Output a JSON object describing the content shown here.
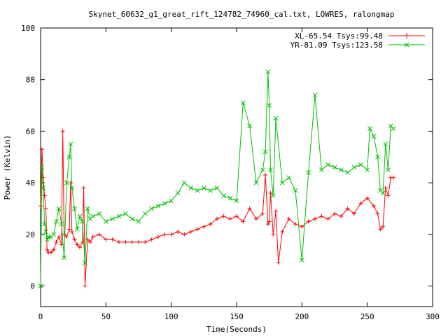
{
  "chart_data": {
    "type": "line",
    "title": "Skynet_60632_g1_great_rift_124782_74960_cal.txt, LOWRES, ralongmap",
    "xlabel": "Time(Seconds)",
    "ylabel": "Power (Kelvin)",
    "xlim": [
      0,
      300
    ],
    "ylim": [
      -8,
      100
    ],
    "xticks": [
      0,
      50,
      100,
      150,
      200,
      250,
      300
    ],
    "yticks": [
      0,
      20,
      40,
      60,
      80,
      100
    ],
    "grid": false,
    "legend_position": "top-right",
    "series": [
      {
        "name": "XL-65.54 Tsys:99.48",
        "color": "#ff0000",
        "marker": "plus",
        "x": [
          0,
          1,
          2,
          3,
          4,
          5,
          6,
          8,
          10,
          12,
          14,
          16,
          17,
          18,
          20,
          22,
          23,
          24,
          26,
          28,
          30,
          32,
          33,
          34,
          36,
          38,
          40,
          45,
          50,
          55,
          60,
          65,
          70,
          75,
          80,
          85,
          90,
          95,
          100,
          105,
          110,
          115,
          120,
          125,
          130,
          135,
          140,
          145,
          150,
          155,
          160,
          165,
          170,
          172,
          174,
          175,
          176,
          178,
          180,
          182,
          185,
          190,
          195,
          200,
          205,
          210,
          215,
          220,
          225,
          230,
          235,
          240,
          245,
          250,
          255,
          258,
          260,
          262,
          264,
          266,
          268,
          270
        ],
        "y": [
          31,
          53,
          42,
          35,
          30,
          14,
          13,
          13,
          14,
          17,
          19,
          16,
          60,
          20,
          19,
          22,
          40,
          21,
          18,
          16,
          15,
          17,
          38,
          0,
          18,
          17,
          19,
          20,
          18,
          18,
          17,
          17,
          17,
          17,
          17,
          18,
          19,
          20,
          20,
          21,
          20,
          21,
          22,
          23,
          24,
          26,
          27,
          26,
          27,
          25,
          30,
          26,
          28,
          43,
          24,
          25,
          36,
          20,
          29,
          9,
          21,
          26,
          24,
          23,
          25,
          26,
          27,
          26,
          28,
          27,
          30,
          28,
          32,
          34,
          31,
          28,
          22,
          23,
          38,
          35,
          42,
          42
        ]
      },
      {
        "name": "YR-81.09 Tsys:123.58",
        "color": "#00c000",
        "marker": "cross",
        "x": [
          0,
          1,
          2,
          3,
          4,
          5,
          6,
          8,
          10,
          12,
          14,
          16,
          18,
          20,
          22,
          23,
          24,
          26,
          28,
          30,
          32,
          34,
          36,
          38,
          40,
          45,
          50,
          55,
          60,
          65,
          70,
          75,
          80,
          85,
          90,
          95,
          100,
          105,
          110,
          115,
          120,
          125,
          130,
          135,
          140,
          145,
          150,
          155,
          160,
          165,
          170,
          172,
          174,
          175,
          176,
          178,
          180,
          185,
          190,
          195,
          200,
          205,
          210,
          215,
          220,
          225,
          230,
          235,
          240,
          245,
          250,
          252,
          255,
          258,
          260,
          262,
          264,
          266,
          268,
          270
        ],
        "y": [
          0,
          46,
          38,
          24,
          21,
          18,
          19,
          19,
          20,
          25,
          30,
          24,
          11,
          40,
          50,
          55,
          38,
          30,
          22,
          27,
          25,
          9,
          30,
          26,
          27,
          28,
          25,
          26,
          27,
          28,
          26,
          25,
          28,
          30,
          31,
          32,
          33,
          36,
          40,
          38,
          37,
          38,
          37,
          38,
          35,
          34,
          33,
          71,
          62,
          40,
          45,
          52,
          83,
          70,
          45,
          35,
          65,
          40,
          42,
          37,
          10,
          44,
          74,
          45,
          47,
          46,
          45,
          44,
          46,
          47,
          45,
          61,
          58,
          50,
          37,
          36,
          55,
          45,
          62,
          61
        ]
      }
    ]
  }
}
